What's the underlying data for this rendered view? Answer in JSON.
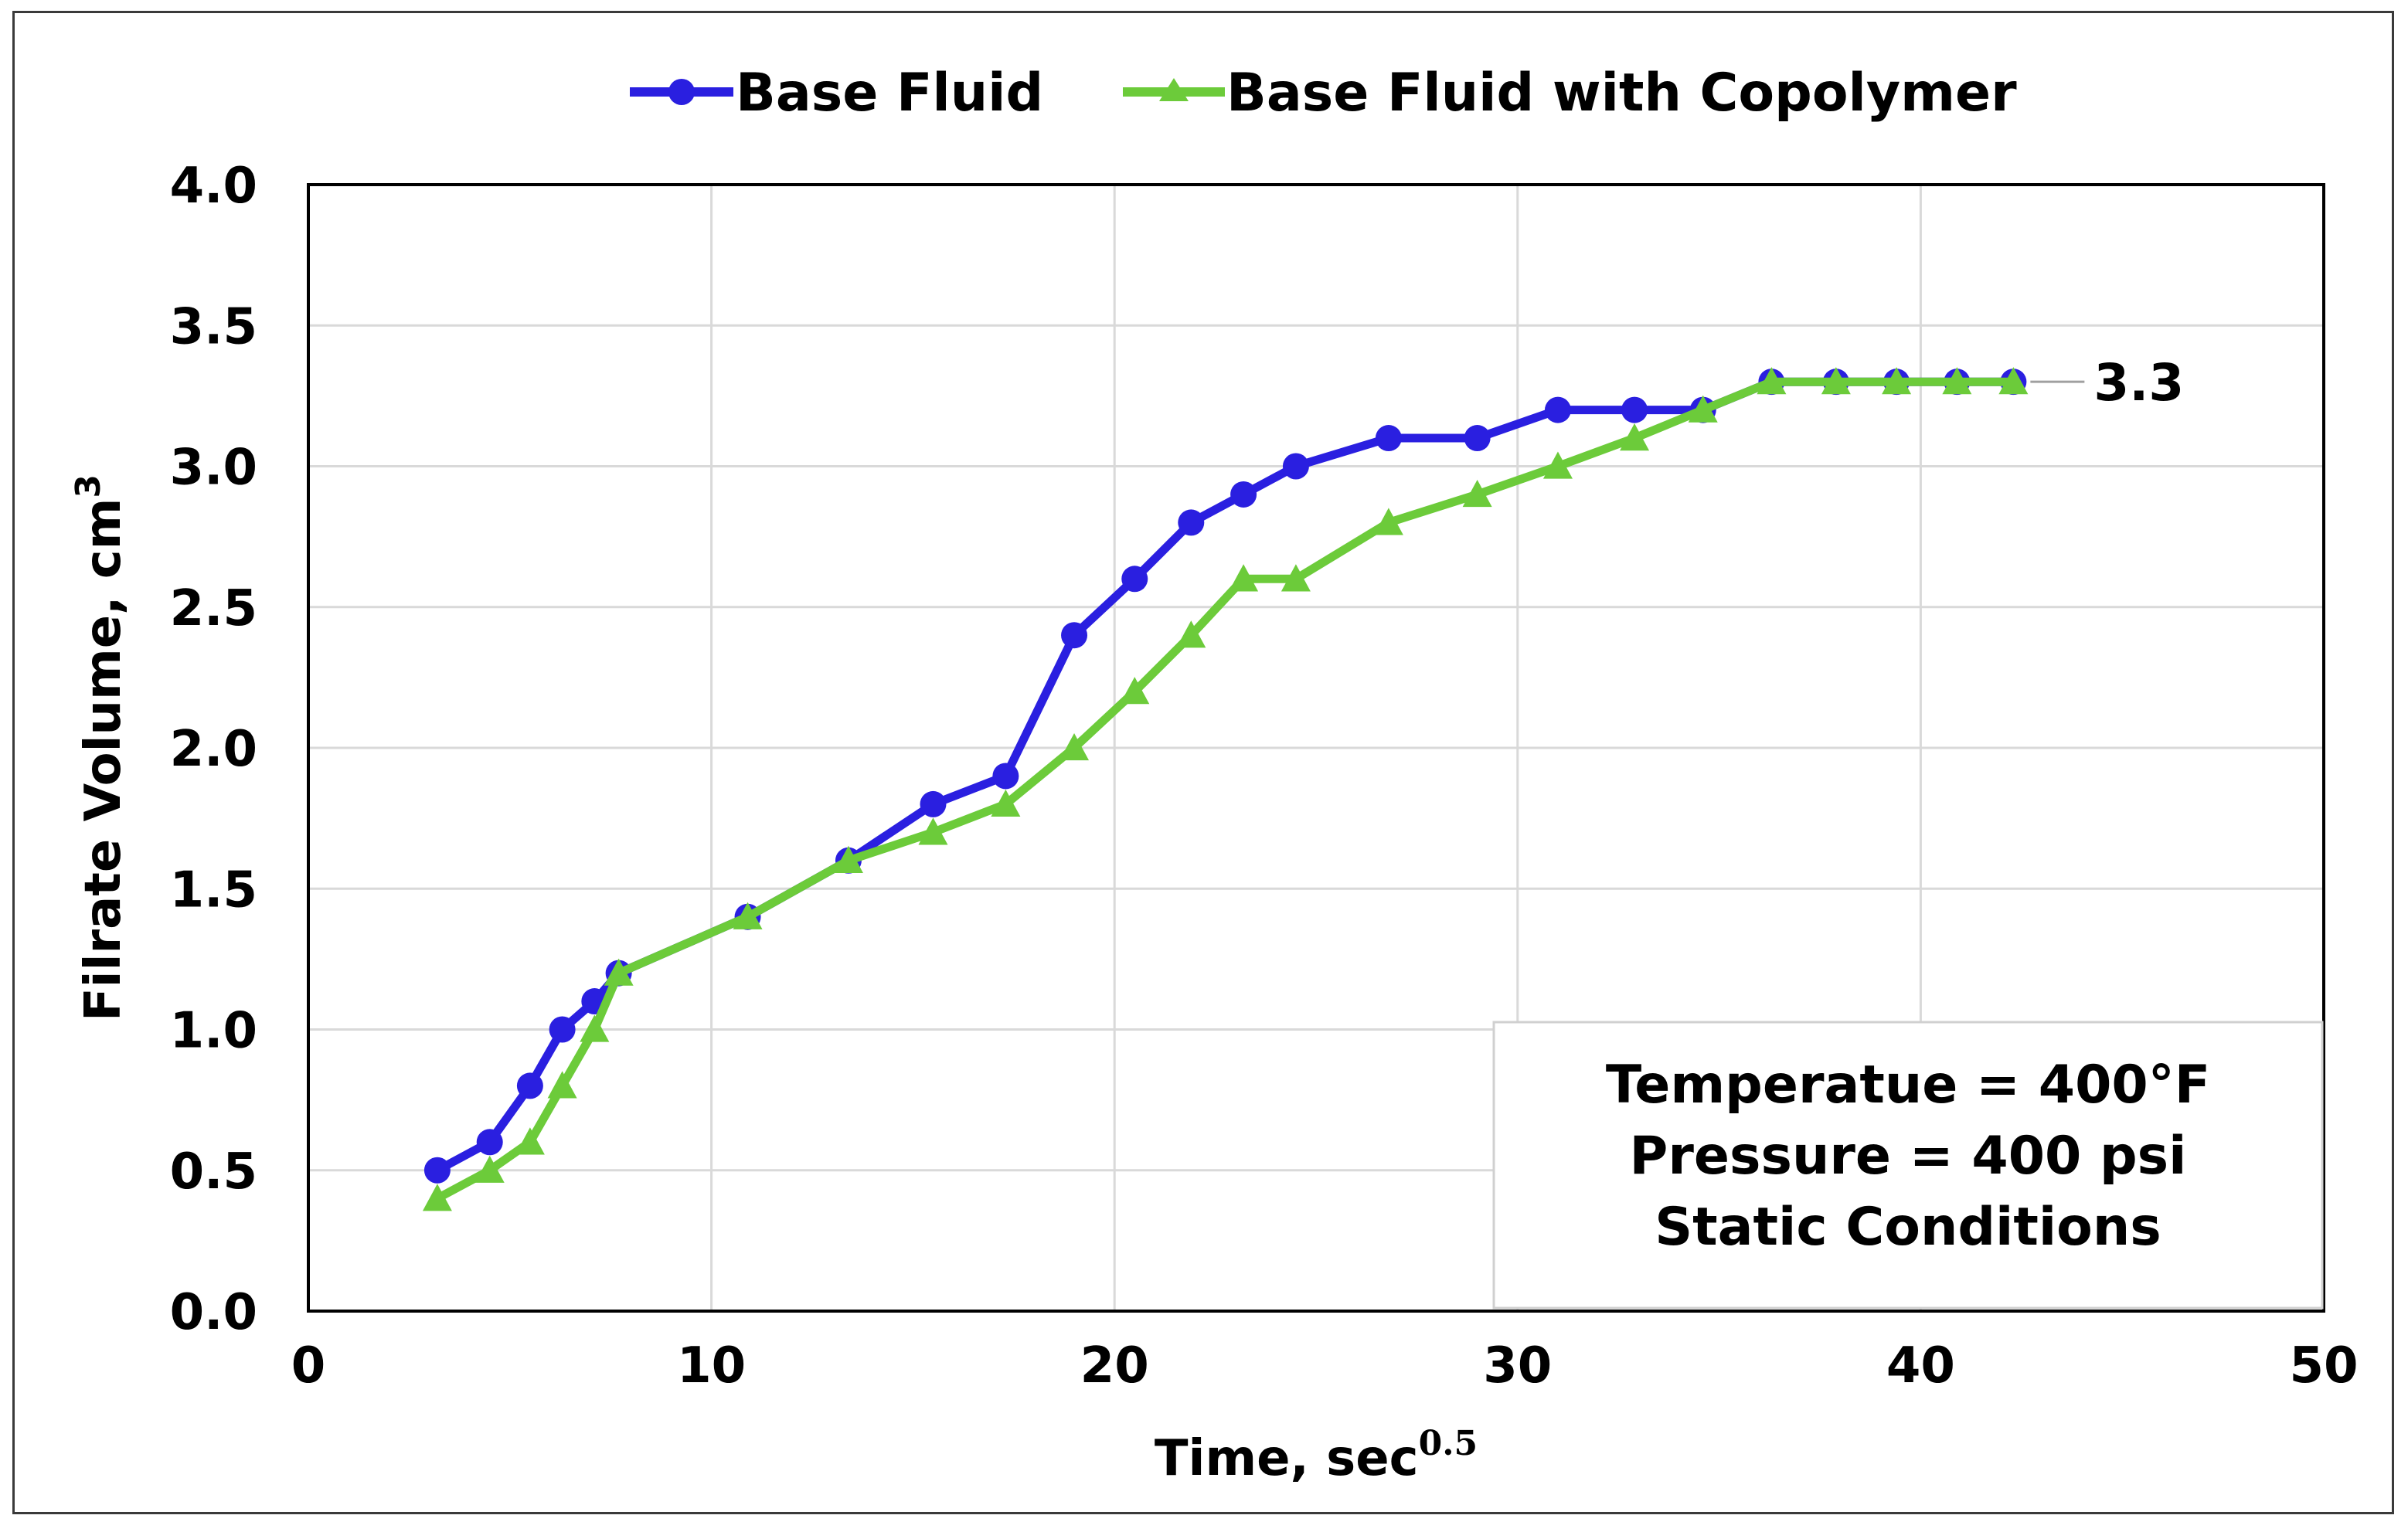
{
  "chart_data": {
    "type": "line",
    "title": "",
    "xlabel": "Time, sec",
    "xlabel_sup": "0.5",
    "ylabel": "Filrate Volume, cm",
    "ylabel_sup": "3",
    "xlim": [
      0,
      50
    ],
    "ylim": [
      0,
      4.0
    ],
    "xticks": [
      0,
      10,
      20,
      30,
      40,
      50
    ],
    "xtick_labels": [
      "0",
      "10",
      "20",
      "30",
      "40",
      "50"
    ],
    "yticks": [
      0,
      0.5,
      1.0,
      1.5,
      2.0,
      2.5,
      3.0,
      3.5,
      4.0
    ],
    "ytick_labels": [
      "0.0",
      "0.5",
      "1.0",
      "1.5",
      "2.0",
      "2.5",
      "3.0",
      "3.5",
      "4.0"
    ],
    "grid": true,
    "legend_position": "top-center",
    "series": [
      {
        "name": "Base Fluid",
        "color": "#2a1fe0",
        "marker": "circle",
        "points": [
          [
            3.2,
            0.5
          ],
          [
            4.5,
            0.6
          ],
          [
            5.5,
            0.8
          ],
          [
            6.3,
            1.0
          ],
          [
            7.1,
            1.1
          ],
          [
            7.7,
            1.2
          ],
          [
            10.9,
            1.4
          ],
          [
            13.4,
            1.6
          ],
          [
            15.5,
            1.8
          ],
          [
            17.3,
            1.9
          ],
          [
            19.0,
            2.4
          ],
          [
            20.5,
            2.6
          ],
          [
            21.9,
            2.8
          ],
          [
            23.2,
            2.9
          ],
          [
            24.5,
            3.0
          ],
          [
            26.8,
            3.1
          ],
          [
            29.0,
            3.1
          ],
          [
            31.0,
            3.2
          ],
          [
            32.9,
            3.2
          ],
          [
            34.6,
            3.2
          ],
          [
            36.3,
            3.3
          ],
          [
            37.9,
            3.3
          ],
          [
            39.4,
            3.3
          ],
          [
            40.9,
            3.3
          ],
          [
            42.3,
            3.3
          ]
        ]
      },
      {
        "name": "Base Fluid with Copolymer",
        "color": "#6ccb3a",
        "marker": "triangle",
        "points": [
          [
            3.2,
            0.4
          ],
          [
            4.5,
            0.5
          ],
          [
            5.5,
            0.6
          ],
          [
            6.3,
            0.8
          ],
          [
            7.1,
            1.0
          ],
          [
            7.7,
            1.2
          ],
          [
            10.9,
            1.4
          ],
          [
            13.4,
            1.6
          ],
          [
            15.5,
            1.7
          ],
          [
            17.3,
            1.8
          ],
          [
            19.0,
            2.0
          ],
          [
            20.5,
            2.2
          ],
          [
            21.9,
            2.4
          ],
          [
            23.2,
            2.6
          ],
          [
            24.5,
            2.6
          ],
          [
            26.8,
            2.8
          ],
          [
            29.0,
            2.9
          ],
          [
            31.0,
            3.0
          ],
          [
            32.9,
            3.1
          ],
          [
            34.6,
            3.2
          ],
          [
            36.3,
            3.3
          ],
          [
            37.9,
            3.3
          ],
          [
            39.4,
            3.3
          ],
          [
            40.9,
            3.3
          ],
          [
            42.3,
            3.3
          ]
        ]
      }
    ],
    "data_label": {
      "text": "3.3",
      "x": 42.3,
      "y": 3.3
    },
    "annotation_lines": [
      "Temperatue = 400°F",
      "Pressure = 400 psi",
      "Static Conditions"
    ]
  }
}
